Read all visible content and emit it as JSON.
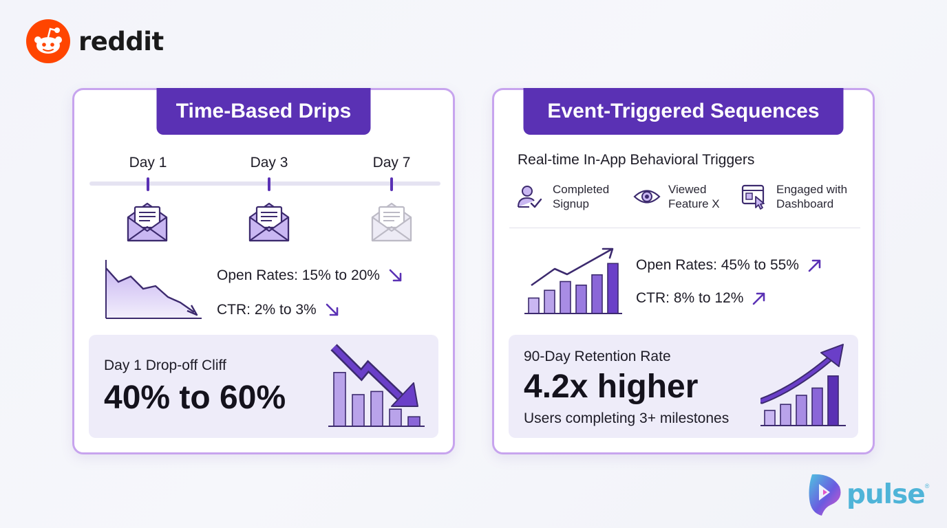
{
  "brand": {
    "reddit": "reddit",
    "pulse": "pulse",
    "pulse_mark": "®"
  },
  "colors": {
    "accent": "#5a31b4",
    "accent_light": "#b9a3ea",
    "card_border": "#c7a4ee",
    "reddit_orange": "#ff4500",
    "pulse_blue": "#4fb4d8"
  },
  "left_card": {
    "title": "Time-Based Drips",
    "timeline": [
      {
        "label": "Day 1",
        "faded": false
      },
      {
        "label": "Day 3",
        "faded": false
      },
      {
        "label": "Day 7",
        "faded": true
      }
    ],
    "metrics": [
      {
        "text": "Open Rates: 15% to 20%",
        "trend": "down"
      },
      {
        "text": "CTR: 2% to 3%",
        "trend": "down"
      }
    ],
    "panel": {
      "subtitle": "Day 1 Drop-off Cliff",
      "headline": "40% to 60%"
    },
    "panel_bars": [
      0.85,
      0.5,
      0.55,
      0.27,
      0.15
    ]
  },
  "right_card": {
    "title": "Event-Triggered Sequences",
    "subtitle": "Real-time In-App Behavioral Triggers",
    "triggers": [
      {
        "icon": "user-check-icon",
        "line1": "Completed",
        "line2": "Signup"
      },
      {
        "icon": "eye-icon",
        "line1": "Viewed",
        "line2": "Feature X"
      },
      {
        "icon": "dashboard-click-icon",
        "line1": "Engaged with",
        "line2": "Dashboard"
      }
    ],
    "metrics": [
      {
        "text": "Open Rates: 45% to 55%",
        "trend": "up"
      },
      {
        "text": "CTR: 8% to 12%",
        "trend": "up"
      }
    ],
    "growth_bars": [
      0.3,
      0.45,
      0.62,
      0.55,
      0.75,
      0.97
    ],
    "panel": {
      "subtitle": "90-Day Retention Rate",
      "headline": "4.2x higher",
      "note": "Users completing 3+ milestones"
    },
    "panel_bars": [
      0.25,
      0.35,
      0.5,
      0.62,
      0.82
    ]
  }
}
